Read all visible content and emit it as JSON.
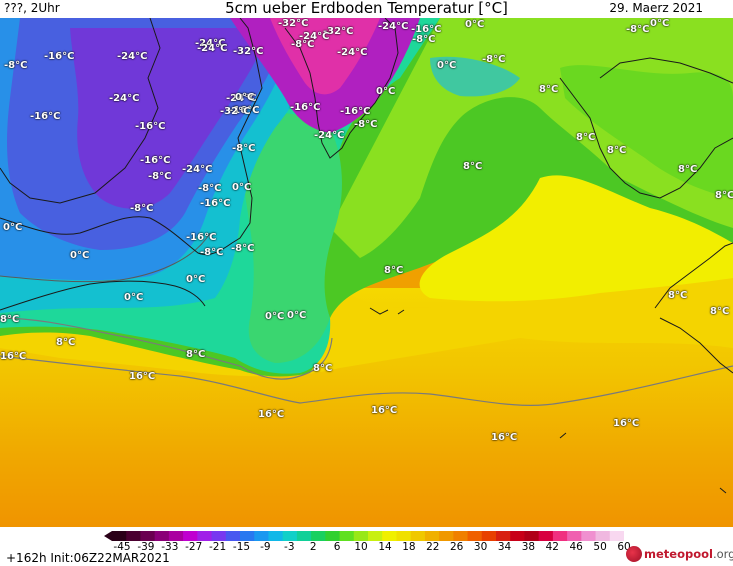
{
  "header": {
    "left": "???, 2Uhr",
    "title": "5cm ueber Erdboden Temperatur [°C]",
    "date": "29. Maerz 2021"
  },
  "footer": {
    "run_info": "+162h Init:06Z22MAR2021",
    "logo": "meteopool",
    "logo_tld": ".org"
  },
  "colorbar": {
    "ticks": [
      "-45",
      "-39",
      "-33",
      "-27",
      "-21",
      "-15",
      "-9",
      "-3",
      "2",
      "6",
      "10",
      "14",
      "18",
      "22",
      "26",
      "30",
      "34",
      "38",
      "42",
      "46",
      "50",
      "60"
    ],
    "colors": [
      "#2a0018",
      "#4a0030",
      "#6a0050",
      "#8a0078",
      "#aa00a0",
      "#c000d0",
      "#a020e8",
      "#7838f0",
      "#4858f0",
      "#2878f0",
      "#1a98f0",
      "#10b8e8",
      "#10d0c8",
      "#10d098",
      "#18d060",
      "#30d030",
      "#60e020",
      "#98e818",
      "#c8f010",
      "#f0f000",
      "#f0e000",
      "#f0c800",
      "#f0b000",
      "#f09800",
      "#f08000",
      "#f06000",
      "#e84000",
      "#d82010",
      "#c80018",
      "#b00018",
      "#d80040",
      "#f03080",
      "#f060b0",
      "#f090d0",
      "#f0b8e0",
      "#f8d8f0"
    ]
  },
  "map_labels": [
    {
      "text": "-8°C"
    },
    {
      "text": "-16°C"
    },
    {
      "text": "-24°C"
    },
    {
      "text": "-24°C"
    },
    {
      "text": "-32°C"
    },
    {
      "text": "-32°C"
    },
    {
      "text": "-32°C"
    },
    {
      "text": "-24°C"
    },
    {
      "text": "-8°C"
    },
    {
      "text": "-24°C"
    },
    {
      "text": "-24°C"
    },
    {
      "text": "-16°C"
    },
    {
      "text": "-8°C"
    },
    {
      "text": "0°C"
    },
    {
      "text": "-8°C"
    },
    {
      "text": "-8°C"
    },
    {
      "text": "0°C"
    },
    {
      "text": "-16°C"
    },
    {
      "text": "-24°C"
    },
    {
      "text": "-24°C"
    },
    {
      "text": "-24°C"
    },
    {
      "text": "-16°C"
    },
    {
      "text": "-16°C"
    },
    {
      "text": "-32°C"
    },
    {
      "text": "0°C"
    },
    {
      "text": "-16°C"
    },
    {
      "text": "-8°C"
    },
    {
      "text": "-24°C"
    },
    {
      "text": "-8°C"
    },
    {
      "text": "8°C"
    },
    {
      "text": "0°C"
    },
    {
      "text": "-8°C"
    },
    {
      "text": "8°C"
    },
    {
      "text": "-16°C"
    },
    {
      "text": "-16°C"
    },
    {
      "text": "-24°C"
    },
    {
      "text": "0°C"
    },
    {
      "text": "-8°C"
    },
    {
      "text": "-16°C"
    },
    {
      "text": "8°C"
    },
    {
      "text": "0°C"
    },
    {
      "text": "-16°C"
    },
    {
      "text": "-8°C"
    },
    {
      "text": "0°C"
    },
    {
      "text": "-8°C"
    },
    {
      "text": "0°C"
    },
    {
      "text": "8°C"
    },
    {
      "text": "0°C"
    },
    {
      "text": "0°C"
    },
    {
      "text": "0°C"
    },
    {
      "text": "8°C"
    },
    {
      "text": "8°C"
    },
    {
      "text": "8°C"
    },
    {
      "text": "16°C"
    },
    {
      "text": "8°C"
    },
    {
      "text": "8°C"
    },
    {
      "text": "16°C"
    },
    {
      "text": "8°C"
    },
    {
      "text": "16°C"
    },
    {
      "text": "16°C"
    },
    {
      "text": "16°C"
    },
    {
      "text": "16°C"
    },
    {
      "text": "8°C"
    },
    {
      "text": "0°C"
    },
    {
      "text": "-8°C"
    },
    {
      "text": "8°C"
    },
    {
      "text": "8°C"
    }
  ]
}
